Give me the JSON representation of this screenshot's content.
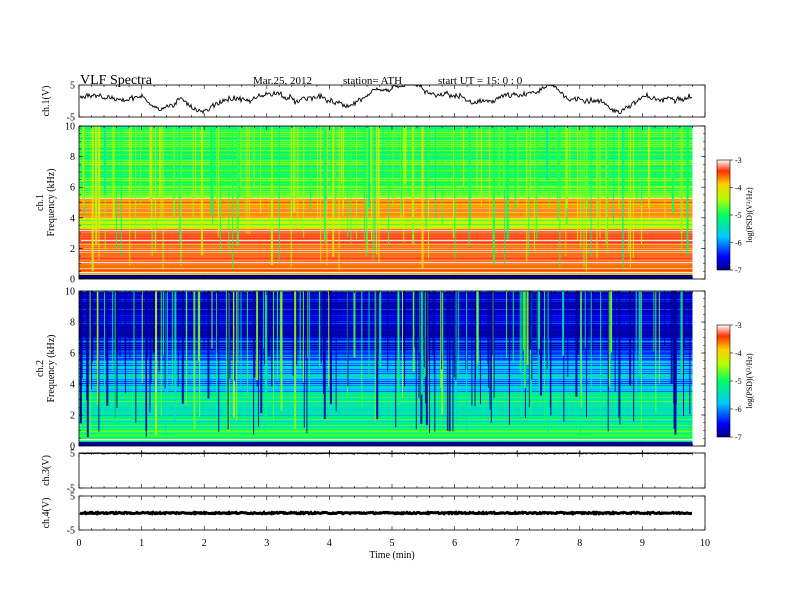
{
  "header": {
    "title": "VLF  Spectra",
    "date": "Mar.25, 2012",
    "station": "station= ATH",
    "start": "start  UT  =     15: 0   : 0"
  },
  "chart_data": {
    "type": "heatmap",
    "x_axis": {
      "label": "Time  (min)",
      "range": [
        0,
        10
      ],
      "ticks": [
        "0",
        "1",
        "2",
        "3",
        "4",
        "5",
        "6",
        "7",
        "8",
        "9",
        "10"
      ],
      "data_end_min": 9.8
    },
    "panels": [
      {
        "name": "ch1-waveform",
        "ylabel": "ch.1(V)",
        "type": "line",
        "ylim": [
          -5,
          5
        ],
        "yticks": [
          "5",
          "-5"
        ],
        "description_values": {
          "mean": 0.5,
          "amplitude": 3
        }
      },
      {
        "name": "ch1-spectrogram",
        "ylabel": "ch.1",
        "ylabel2": "Frequency  (kHz)",
        "type": "heatmap",
        "ylim": [
          0,
          10
        ],
        "yticks": [
          "0",
          "2",
          "4",
          "6",
          "8",
          "10"
        ],
        "colorbar": {
          "label": "log(PSD)(V²/Hz)",
          "range": [
            -7,
            -3
          ],
          "ticks": [
            "-3",
            "-4",
            "-5",
            "-6",
            "-7"
          ]
        },
        "band_levels": [
          {
            "f0": 0,
            "f1": 0.3,
            "v": -7
          },
          {
            "f0": 0.3,
            "f1": 1.0,
            "v": -3.6
          },
          {
            "f0": 1.0,
            "f1": 3.3,
            "v": -3.3
          },
          {
            "f0": 3.3,
            "f1": 4.0,
            "v": -4.3
          },
          {
            "f0": 4.0,
            "f1": 5.3,
            "v": -3.7
          },
          {
            "f0": 5.3,
            "f1": 6.0,
            "v": -4.6
          },
          {
            "f0": 6.0,
            "f1": 10.0,
            "v": -4.9
          }
        ]
      },
      {
        "name": "ch2-spectrogram",
        "ylabel": "ch.2",
        "ylabel2": "Frequency  (kHz)",
        "type": "heatmap",
        "ylim": [
          0,
          10
        ],
        "yticks": [
          "0",
          "2",
          "4",
          "6",
          "8",
          "10"
        ],
        "colorbar": {
          "label": "log(PSD)(V²/Hz)",
          "range": [
            -7,
            -3
          ],
          "ticks": [
            "-3",
            "-4",
            "-5",
            "-6",
            "-7"
          ]
        },
        "band_levels": [
          {
            "f0": 0,
            "f1": 0.3,
            "v": -7
          },
          {
            "f0": 0.3,
            "f1": 1.2,
            "v": -4.9
          },
          {
            "f0": 1.2,
            "f1": 3.5,
            "v": -5.3
          },
          {
            "f0": 3.5,
            "f1": 5.5,
            "v": -5.8
          },
          {
            "f0": 5.5,
            "f1": 7.0,
            "v": -6.3
          },
          {
            "f0": 7.0,
            "f1": 10.0,
            "v": -6.7
          }
        ]
      },
      {
        "name": "ch3-waveform",
        "ylabel": "ch.3(V)",
        "type": "line",
        "ylim": [
          -5,
          5
        ],
        "yticks": [
          "5",
          "-5"
        ],
        "description_values": {
          "mean": 4.9,
          "amplitude": 0.1
        }
      },
      {
        "name": "ch4-waveform",
        "ylabel": "ch.4(V)",
        "type": "line",
        "ylim": [
          -5,
          5
        ],
        "yticks": [
          "5",
          "-5"
        ],
        "description_values": {
          "mean": 0,
          "amplitude": 0.2
        }
      }
    ]
  }
}
